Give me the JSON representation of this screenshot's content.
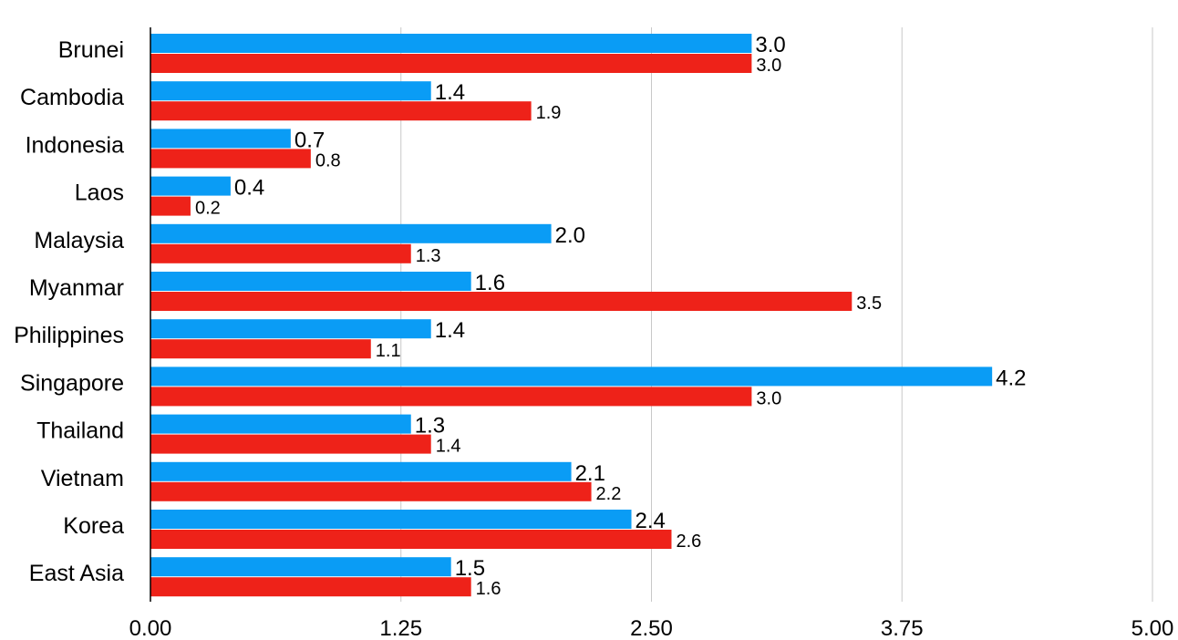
{
  "chart_data": {
    "type": "bar",
    "orientation": "horizontal",
    "title": "",
    "xlabel": "",
    "ylabel": "",
    "categories": [
      "Brunei",
      "Cambodia",
      "Indonesia",
      "Laos",
      "Malaysia",
      "Myanmar",
      "Philippines",
      "Singapore",
      "Thailand",
      "Vietnam",
      "Korea",
      "East Asia"
    ],
    "series": [
      {
        "color": "#0a9cf5",
        "values": [
          3.0,
          1.4,
          0.7,
          0.4,
          2.0,
          1.6,
          1.4,
          4.2,
          1.3,
          2.1,
          2.4,
          1.5
        ],
        "labels": [
          "3.0",
          "1.4",
          "0.7",
          "0.4",
          "2.0",
          "1.6",
          "1.4",
          "4.2",
          "1.3",
          "2.1",
          "2.4",
          "1.5"
        ]
      },
      {
        "color": "#ee2219",
        "values": [
          3.0,
          1.9,
          0.8,
          0.2,
          1.3,
          3.5,
          1.1,
          3.0,
          1.4,
          2.2,
          2.6,
          1.6
        ],
        "labels": [
          "3.0",
          "1.9",
          "0.8",
          "0.2",
          "1.3",
          "3.5",
          "1.1",
          "3.0",
          "1.4",
          "2.2",
          "2.6",
          "1.6"
        ]
      }
    ],
    "xlim": [
      0,
      5
    ],
    "xticks": [
      0,
      1.25,
      2.5,
      3.75,
      5
    ],
    "xtick_labels": [
      "0.00",
      "1.25",
      "2.50",
      "3.75",
      "5.00"
    ],
    "grid": "vertical",
    "legend": "none"
  }
}
